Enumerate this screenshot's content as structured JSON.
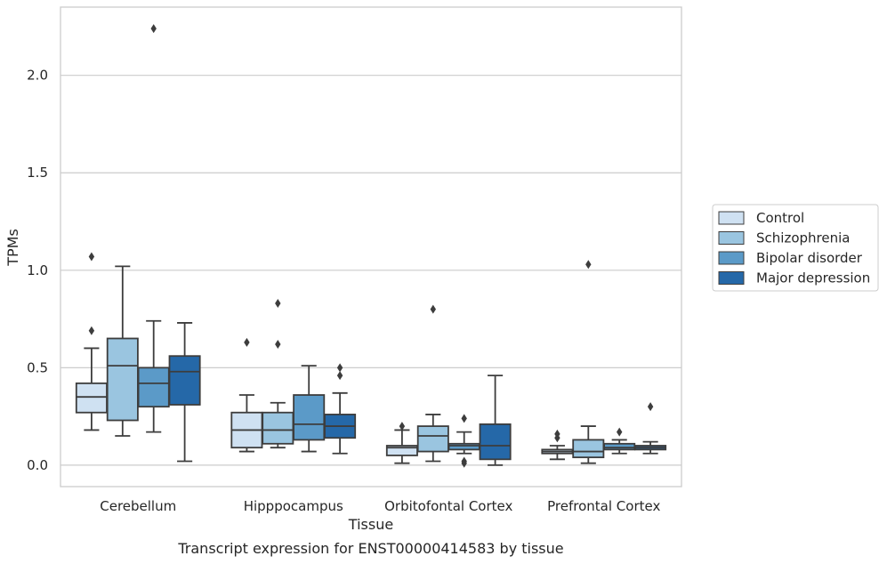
{
  "chart_data": {
    "type": "box",
    "title": "",
    "xlabel": "Tissue",
    "ylabel": "TPMs",
    "caption": "Transcript expression for ENST00000414583 by tissue",
    "ylim": [
      -0.11,
      2.35
    ],
    "yticks": [
      0.0,
      0.5,
      1.0,
      1.5,
      2.0
    ],
    "ytick_labels": [
      "0.0",
      "0.5",
      "1.0",
      "1.5",
      "2.0"
    ],
    "grid": "horizontal",
    "legend_position": "right",
    "categories": [
      "Cerebellum",
      "Hipppocampus",
      "Orbitofontal Cortex",
      "Prefrontal Cortex"
    ],
    "series": [
      {
        "name": "Control",
        "color": "#cfe1f2",
        "boxes": [
          {
            "whislo": 0.18,
            "q1": 0.27,
            "med": 0.35,
            "q3": 0.42,
            "whishi": 0.6,
            "fliers": [
              0.69,
              1.07
            ]
          },
          {
            "whislo": 0.07,
            "q1": 0.09,
            "med": 0.18,
            "q3": 0.27,
            "whishi": 0.36,
            "fliers": [
              0.63
            ]
          },
          {
            "whislo": 0.01,
            "q1": 0.05,
            "med": 0.09,
            "q3": 0.1,
            "whishi": 0.18,
            "fliers": [
              0.2
            ]
          },
          {
            "whislo": 0.03,
            "q1": 0.06,
            "med": 0.07,
            "q3": 0.08,
            "whishi": 0.1,
            "fliers": [
              0.14,
              0.16
            ]
          }
        ]
      },
      {
        "name": "Schizophrenia",
        "color": "#9ac5e0",
        "boxes": [
          {
            "whislo": 0.15,
            "q1": 0.23,
            "med": 0.51,
            "q3": 0.65,
            "whishi": 1.02,
            "fliers": []
          },
          {
            "whislo": 0.09,
            "q1": 0.11,
            "med": 0.18,
            "q3": 0.27,
            "whishi": 0.32,
            "fliers": [
              0.62,
              0.83
            ]
          },
          {
            "whislo": 0.02,
            "q1": 0.07,
            "med": 0.15,
            "q3": 0.2,
            "whishi": 0.26,
            "fliers": [
              0.8
            ]
          },
          {
            "whislo": 0.01,
            "q1": 0.04,
            "med": 0.07,
            "q3": 0.13,
            "whishi": 0.2,
            "fliers": [
              1.03
            ]
          }
        ]
      },
      {
        "name": "Bipolar disorder",
        "color": "#5b9ac8",
        "boxes": [
          {
            "whislo": 0.17,
            "q1": 0.3,
            "med": 0.42,
            "q3": 0.5,
            "whishi": 0.74,
            "fliers": [
              2.24
            ]
          },
          {
            "whislo": 0.07,
            "q1": 0.13,
            "med": 0.21,
            "q3": 0.36,
            "whishi": 0.51,
            "fliers": []
          },
          {
            "whislo": 0.06,
            "q1": 0.08,
            "med": 0.1,
            "q3": 0.11,
            "whishi": 0.17,
            "fliers": [
              0.24,
              0.02,
              0.01
            ]
          },
          {
            "whislo": 0.06,
            "q1": 0.08,
            "med": 0.09,
            "q3": 0.11,
            "whishi": 0.13,
            "fliers": [
              0.17
            ]
          }
        ]
      },
      {
        "name": "Major depression",
        "color": "#2568a8",
        "boxes": [
          {
            "whislo": 0.02,
            "q1": 0.31,
            "med": 0.48,
            "q3": 0.56,
            "whishi": 0.73,
            "fliers": []
          },
          {
            "whislo": 0.06,
            "q1": 0.14,
            "med": 0.2,
            "q3": 0.26,
            "whishi": 0.37,
            "fliers": [
              0.46,
              0.5
            ]
          },
          {
            "whislo": 0.0,
            "q1": 0.03,
            "med": 0.1,
            "q3": 0.21,
            "whishi": 0.46,
            "fliers": []
          },
          {
            "whislo": 0.06,
            "q1": 0.08,
            "med": 0.09,
            "q3": 0.1,
            "whishi": 0.12,
            "fliers": [
              0.3
            ]
          }
        ]
      }
    ]
  }
}
